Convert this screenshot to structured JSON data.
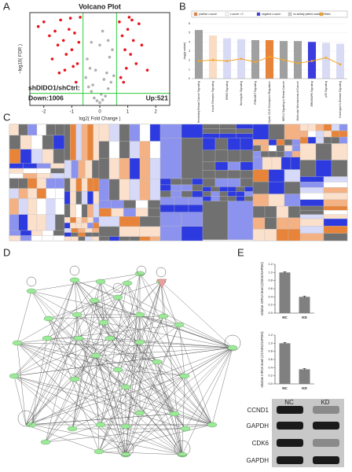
{
  "panel_labels": [
    "A",
    "B",
    "C",
    "D",
    "E"
  ],
  "chart_data": [
    {
      "type": "scatter",
      "title": "Volcano Plot",
      "x_label": "log2( Fold Change )",
      "y_label": "−log10( FDR )",
      "annotations": [
        "shDIDO1/shCtrl:",
        "Down:1006",
        "Up:521"
      ],
      "xlim": [
        -2.5,
        2.5
      ],
      "xticks": [
        -2,
        -1,
        0,
        1,
        2
      ],
      "ylim": [
        0,
        10
      ],
      "thresholds_x": [
        -0.6,
        0.6
      ],
      "threshold_y": 1.3,
      "series": [
        {
          "color": "#b0b0b0",
          "x": [
            -0.5,
            -0.4,
            -0.3,
            -0.2,
            -0.1,
            0,
            0.1,
            0.2,
            0.3,
            0.4,
            0.5,
            -0.45,
            -0.25,
            0.05,
            0.25,
            0.45,
            -0.35,
            0.15,
            0.35,
            -0.15,
            0,
            0.3,
            -0.3,
            0.1
          ],
          "y": [
            3,
            2,
            1.5,
            0.8,
            0.5,
            0.3,
            0.6,
            1,
            1.8,
            2.5,
            3.2,
            5,
            2.2,
            1.2,
            3.5,
            6,
            4,
            2.8,
            5.2,
            3.8,
            6.5,
            7,
            6.8,
            8
          ]
        },
        {
          "color": "#e8141a",
          "x": [
            -2.2,
            -2,
            -1.8,
            -1.6,
            -1.5,
            -1.4,
            -1.3,
            -1.2,
            -1.1,
            -1,
            -0.9,
            -0.8,
            -0.7,
            -1.7,
            -1.25,
            -0.95,
            -0.75,
            -1.45,
            -1.05,
            -0.85,
            0.7,
            0.8,
            0.9,
            1,
            1.1,
            1.2,
            1.3,
            1.5,
            1.7,
            0.75,
            0.95,
            1.15,
            1.4,
            0.85,
            1.05
          ],
          "y": [
            8.5,
            9,
            7.5,
            8,
            6.5,
            9.2,
            7,
            5.5,
            8.2,
            6,
            7.8,
            4.5,
            9.5,
            5,
            3.8,
            4.2,
            6.8,
            3.5,
            9.4,
            2.5,
            9,
            7.5,
            6,
            8.2,
            5.5,
            7,
            4.5,
            6.5,
            3.8,
            3,
            4,
            9.2,
            8.8,
            2.5,
            9.5
          ]
        }
      ]
    },
    {
      "type": "bar",
      "y_label": "-log(p-value)",
      "legend": [
        "positive z-score",
        "z-score = 0",
        "negative z-score",
        "no activity pattern available",
        "Ratio"
      ],
      "legend_colors": [
        "#e8843a",
        "#ffffff",
        "#3b3be0",
        "#cccccc",
        "#f5a623"
      ],
      "categories": [
        "Hereditary Breast Cancer Signaling",
        "Insulin Receptor Signaling",
        "ERK5 Signaling",
        "Neuregulin Signaling",
        "PI3K/AKT Signaling",
        "Cell Cycle: G1/S Checkpoint Regulation",
        "HER-2 Signaling in Breast Cancer",
        "Molecular Mechanisms of Cancer",
        "ERK/MAPK Signaling",
        "p53 Signaling",
        "Huntington's Disease Signaling"
      ],
      "ylim": [
        0,
        6
      ],
      "yticks": [
        0,
        1,
        2,
        3,
        4,
        5,
        6
      ],
      "y2lim": [
        0,
        0.25
      ],
      "series": [
        {
          "colors": [
            "#a0a0a0",
            "#f8dcc4",
            "#d9dbf5",
            "#d9dbf5",
            "#a0a0a0",
            "#e8843a",
            "#a0a0a0",
            "#a0a0a0",
            "#3b3be0",
            "#d9dbf5",
            "#d9dbf5"
          ],
          "values": [
            5.3,
            4.7,
            4.4,
            4.3,
            4.2,
            4.2,
            4.1,
            4.1,
            4.0,
            3.9,
            3.8
          ]
        },
        {
          "name": "Ratio",
          "axis": "y2",
          "color": "#f5a623",
          "values": [
            0.08,
            0.085,
            0.08,
            0.09,
            0.075,
            0.1,
            0.085,
            0.07,
            0.08,
            0.095,
            0.065
          ]
        }
      ]
    },
    {
      "type": "bar",
      "y_label": "relative mRNA level (CDK6/GAPDH)",
      "categories": [
        "NC",
        "KD"
      ],
      "values": [
        1.0,
        0.4
      ],
      "errors": [
        0.02,
        0.02
      ],
      "color": "#808080",
      "ylim": [
        0,
        1.2
      ],
      "yticks": [
        {
          "value": 0,
          "label": "0.0"
        },
        {
          "value": 0.2,
          "label": "0.2"
        },
        {
          "value": 0.4,
          "label": "0.4"
        },
        {
          "value": 0.6,
          "label": "0.6"
        },
        {
          "value": 0.8,
          "label": "0.8"
        },
        {
          "value": 1.0,
          "label": "1.0"
        },
        {
          "value": 1.2,
          "label": "1.2"
        }
      ]
    },
    {
      "type": "bar",
      "y_label": "relative mRNA level (CCND1/GAPDH)",
      "categories": [
        "NC",
        "KD"
      ],
      "values": [
        1.0,
        0.36
      ],
      "errors": [
        0.02,
        0.02
      ],
      "color": "#808080",
      "ylim": [
        0,
        1.2
      ],
      "yticks": [
        {
          "value": 0,
          "label": "0.0"
        },
        {
          "value": 0.2,
          "label": "0.2"
        },
        {
          "value": 0.4,
          "label": "0.4"
        },
        {
          "value": 0.6,
          "label": "0.6"
        },
        {
          "value": 0.8,
          "label": "0.8"
        },
        {
          "value": 1.0,
          "label": "1.0"
        },
        {
          "value": 1.2,
          "label": "1.2"
        }
      ]
    }
  ],
  "western_blot": {
    "lanes": [
      "NC",
      "KD"
    ],
    "proteins": [
      "CCND1",
      "GAPDH",
      "CDK6",
      "GAPDH"
    ]
  }
}
